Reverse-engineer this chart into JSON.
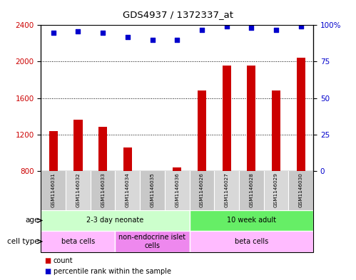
{
  "title": "GDS4937 / 1372337_at",
  "samples": [
    "GSM1146031",
    "GSM1146032",
    "GSM1146033",
    "GSM1146034",
    "GSM1146035",
    "GSM1146036",
    "GSM1146026",
    "GSM1146027",
    "GSM1146028",
    "GSM1146029",
    "GSM1146030"
  ],
  "counts": [
    1240,
    1360,
    1280,
    1060,
    800,
    840,
    1680,
    1960,
    1960,
    1680,
    2040
  ],
  "percentiles": [
    95,
    96,
    95,
    92,
    90,
    90,
    97,
    99,
    98,
    97,
    99
  ],
  "ylim_left": [
    800,
    2400
  ],
  "ylim_right": [
    0,
    100
  ],
  "yticks_left": [
    800,
    1200,
    1600,
    2000,
    2400
  ],
  "yticks_right": [
    0,
    25,
    50,
    75,
    100
  ],
  "bar_color": "#cc0000",
  "scatter_color": "#0000cc",
  "age_groups": [
    {
      "label": "2-3 day neonate",
      "start": 0,
      "end": 6,
      "color": "#ccffcc"
    },
    {
      "label": "10 week adult",
      "start": 6,
      "end": 11,
      "color": "#66ee66"
    }
  ],
  "cell_type_groups": [
    {
      "label": "beta cells",
      "start": 0,
      "end": 3,
      "color": "#ffbbff"
    },
    {
      "label": "non-endocrine islet\ncells",
      "start": 3,
      "end": 6,
      "color": "#ee88ee"
    },
    {
      "label": "beta cells",
      "start": 6,
      "end": 11,
      "color": "#ffbbff"
    }
  ],
  "bar_width": 0.35,
  "row_label_age": "age",
  "row_label_celltype": "cell type",
  "sample_bg_color": "#c8c8c8",
  "sample_alt_bg_color": "#d8d8d8"
}
